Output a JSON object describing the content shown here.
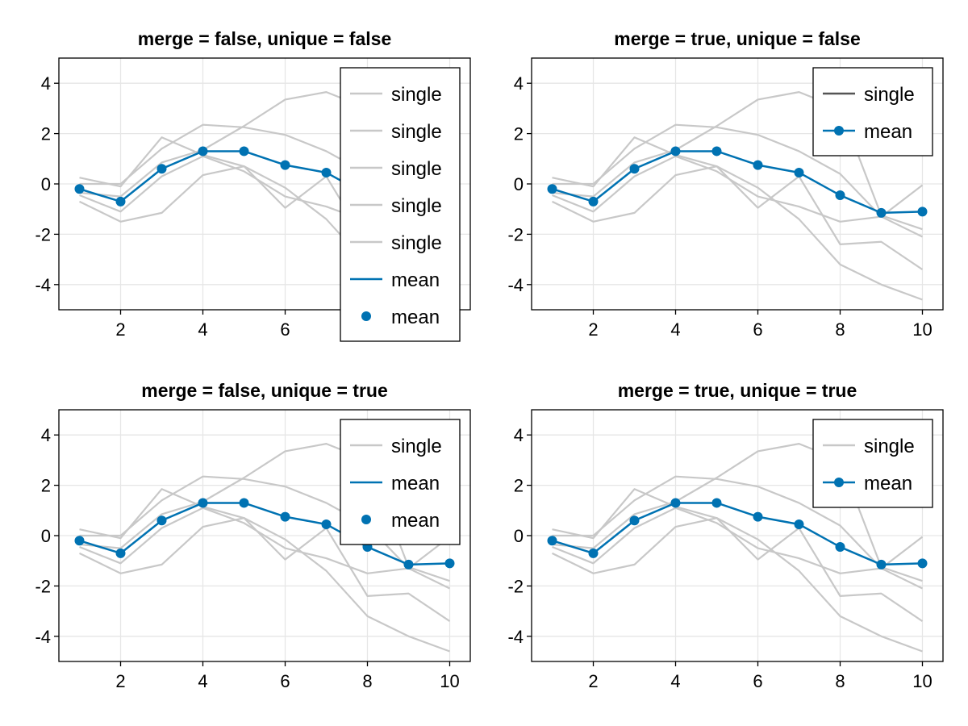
{
  "colors": {
    "single": "#c8c8c8",
    "single_merged_legend": "#555555",
    "mean": "#0072b2",
    "grid": "#e6e6e6",
    "frame": "#000000"
  },
  "chart_data": [
    {
      "type": "line",
      "title": "merge = false, unique = false",
      "xlim": [
        0.5,
        10.5
      ],
      "ylim": [
        -5,
        5
      ],
      "xticks": [
        2,
        4,
        6,
        8,
        10
      ],
      "yticks": [
        4,
        2,
        0,
        -2,
        -4
      ],
      "ytick_labels": [
        "4",
        "2",
        "0",
        "-2",
        "-4"
      ],
      "grid": true,
      "legend_position": "top-right",
      "legend": [
        {
          "label": "single",
          "kind": "line"
        },
        {
          "label": "single",
          "kind": "line"
        },
        {
          "label": "single",
          "kind": "line"
        },
        {
          "label": "single",
          "kind": "line"
        },
        {
          "label": "single",
          "kind": "line"
        },
        {
          "label": "mean",
          "kind": "line"
        },
        {
          "label": "mean",
          "kind": "marker"
        }
      ],
      "x": [
        1,
        2,
        3,
        4,
        5,
        6,
        7,
        8,
        9,
        10
      ],
      "series": [
        {
          "values": [
            0.25,
            -0.1,
            1.85,
            1.15,
            0.7,
            -0.15,
            -1.4,
            -3.2,
            -4.0,
            -4.6
          ]
        },
        {
          "values": [
            -0.7,
            -1.5,
            -1.15,
            0.35,
            0.7,
            -0.95,
            0.3,
            -2.4,
            -2.3,
            -3.4
          ]
        },
        {
          "values": [
            -0.45,
            -1.1,
            0.3,
            1.1,
            0.5,
            -0.5,
            -0.9,
            -1.5,
            -1.3,
            -2.1
          ]
        },
        {
          "values": [
            0.0,
            0.0,
            1.4,
            2.35,
            2.25,
            1.95,
            1.3,
            0.4,
            -1.3,
            -0.05
          ]
        },
        {
          "values": [
            -0.35,
            -0.5,
            0.85,
            1.35,
            2.3,
            3.35,
            3.65,
            3.0,
            -1.25,
            -1.8
          ]
        },
        {
          "name": "mean",
          "values": [
            -0.2,
            -0.7,
            0.6,
            1.3,
            1.3,
            0.75,
            0.45,
            -0.45,
            -1.15,
            -1.1
          ]
        }
      ]
    },
    {
      "type": "line",
      "title": "merge = true, unique = false",
      "xlim": [
        0.5,
        10.5
      ],
      "ylim": [
        -5,
        5
      ],
      "xticks": [
        2,
        4,
        6,
        8,
        10
      ],
      "yticks": [
        4,
        2,
        0,
        -2,
        -4
      ],
      "ytick_labels": [
        "4",
        "2",
        "0",
        "-2",
        "-4"
      ],
      "grid": true,
      "legend_position": "top-right",
      "legend": [
        {
          "label": "single",
          "kind": "line-dark"
        },
        {
          "label": "mean",
          "kind": "line-marker"
        }
      ],
      "x": [
        1,
        2,
        3,
        4,
        5,
        6,
        7,
        8,
        9,
        10
      ],
      "series": [
        {
          "values": [
            0.25,
            -0.1,
            1.85,
            1.15,
            0.7,
            -0.15,
            -1.4,
            -3.2,
            -4.0,
            -4.6
          ]
        },
        {
          "values": [
            -0.7,
            -1.5,
            -1.15,
            0.35,
            0.7,
            -0.95,
            0.3,
            -2.4,
            -2.3,
            -3.4
          ]
        },
        {
          "values": [
            -0.45,
            -1.1,
            0.3,
            1.1,
            0.5,
            -0.5,
            -0.9,
            -1.5,
            -1.3,
            -2.1
          ]
        },
        {
          "values": [
            0.0,
            0.0,
            1.4,
            2.35,
            2.25,
            1.95,
            1.3,
            0.4,
            -1.3,
            -0.05
          ]
        },
        {
          "values": [
            -0.35,
            -0.5,
            0.85,
            1.35,
            2.3,
            3.35,
            3.65,
            3.0,
            -1.25,
            -1.8
          ]
        },
        {
          "name": "mean",
          "values": [
            -0.2,
            -0.7,
            0.6,
            1.3,
            1.3,
            0.75,
            0.45,
            -0.45,
            -1.15,
            -1.1
          ]
        }
      ]
    },
    {
      "type": "line",
      "title": "merge = false, unique = true",
      "xlim": [
        0.5,
        10.5
      ],
      "ylim": [
        -5,
        5
      ],
      "xticks": [
        2,
        4,
        6,
        8,
        10
      ],
      "yticks": [
        4,
        2,
        0,
        -2,
        -4
      ],
      "ytick_labels": [
        "4",
        "2",
        "0",
        "-2",
        "-4"
      ],
      "grid": true,
      "legend_position": "top-right",
      "legend": [
        {
          "label": "single",
          "kind": "line"
        },
        {
          "label": "mean",
          "kind": "line"
        },
        {
          "label": "mean",
          "kind": "marker"
        }
      ],
      "x": [
        1,
        2,
        3,
        4,
        5,
        6,
        7,
        8,
        9,
        10
      ],
      "series": [
        {
          "values": [
            0.25,
            -0.1,
            1.85,
            1.15,
            0.7,
            -0.15,
            -1.4,
            -3.2,
            -4.0,
            -4.6
          ]
        },
        {
          "values": [
            -0.7,
            -1.5,
            -1.15,
            0.35,
            0.7,
            -0.95,
            0.3,
            -2.4,
            -2.3,
            -3.4
          ]
        },
        {
          "values": [
            -0.45,
            -1.1,
            0.3,
            1.1,
            0.5,
            -0.5,
            -0.9,
            -1.5,
            -1.3,
            -2.1
          ]
        },
        {
          "values": [
            0.0,
            0.0,
            1.4,
            2.35,
            2.25,
            1.95,
            1.3,
            0.4,
            -1.3,
            -0.05
          ]
        },
        {
          "values": [
            -0.35,
            -0.5,
            0.85,
            1.35,
            2.3,
            3.35,
            3.65,
            3.0,
            -1.25,
            -1.8
          ]
        },
        {
          "name": "mean",
          "values": [
            -0.2,
            -0.7,
            0.6,
            1.3,
            1.3,
            0.75,
            0.45,
            -0.45,
            -1.15,
            -1.1
          ]
        }
      ]
    },
    {
      "type": "line",
      "title": "merge = true, unique = true",
      "xlim": [
        0.5,
        10.5
      ],
      "ylim": [
        -5,
        5
      ],
      "xticks": [
        2,
        4,
        6,
        8,
        10
      ],
      "yticks": [
        4,
        2,
        0,
        -2,
        -4
      ],
      "ytick_labels": [
        "4",
        "2",
        "0",
        "-2",
        "-4"
      ],
      "grid": true,
      "legend_position": "top-right",
      "legend": [
        {
          "label": "single",
          "kind": "line"
        },
        {
          "label": "mean",
          "kind": "line-marker"
        }
      ],
      "x": [
        1,
        2,
        3,
        4,
        5,
        6,
        7,
        8,
        9,
        10
      ],
      "series": [
        {
          "values": [
            0.25,
            -0.1,
            1.85,
            1.15,
            0.7,
            -0.15,
            -1.4,
            -3.2,
            -4.0,
            -4.6
          ]
        },
        {
          "values": [
            -0.7,
            -1.5,
            -1.15,
            0.35,
            0.7,
            -0.95,
            0.3,
            -2.4,
            -2.3,
            -3.4
          ]
        },
        {
          "values": [
            -0.45,
            -1.1,
            0.3,
            1.1,
            0.5,
            -0.5,
            -0.9,
            -1.5,
            -1.3,
            -2.1
          ]
        },
        {
          "values": [
            0.0,
            0.0,
            1.4,
            2.35,
            2.25,
            1.95,
            1.3,
            0.4,
            -1.3,
            -0.05
          ]
        },
        {
          "values": [
            -0.35,
            -0.5,
            0.85,
            1.35,
            2.3,
            3.35,
            3.65,
            3.0,
            -1.25,
            -1.8
          ]
        },
        {
          "name": "mean",
          "values": [
            -0.2,
            -0.7,
            0.6,
            1.3,
            1.3,
            0.75,
            0.45,
            -0.45,
            -1.15,
            -1.1
          ]
        }
      ]
    }
  ]
}
